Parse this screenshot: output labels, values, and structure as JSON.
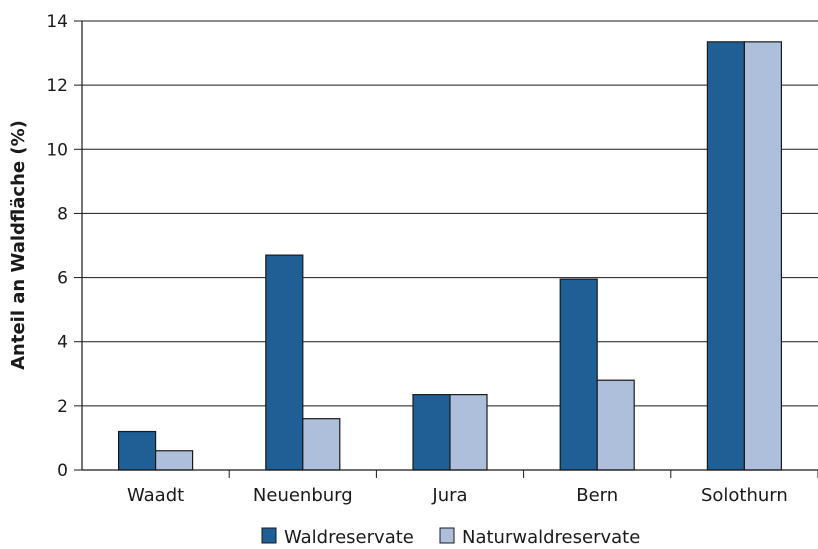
{
  "chart_data": {
    "type": "bar",
    "title": "",
    "xlabel": "",
    "ylabel": "Anteil an Waldfläche (%)",
    "ylim": [
      0,
      14
    ],
    "yticks": [
      0,
      2,
      4,
      6,
      8,
      10,
      12,
      14
    ],
    "grid": "horizontal",
    "legend_position": "bottom",
    "categories": [
      "Waadt",
      "Neuenburg",
      "Jura",
      "Bern",
      "Solothurn"
    ],
    "series": [
      {
        "name": "Waldreservate",
        "color": "#1f5f96",
        "values": [
          1.2,
          6.7,
          2.35,
          5.95,
          13.35
        ]
      },
      {
        "name": "Naturwaldreservate",
        "color": "#aebfdb",
        "values": [
          0.6,
          1.6,
          2.35,
          2.8,
          13.35
        ]
      }
    ]
  }
}
